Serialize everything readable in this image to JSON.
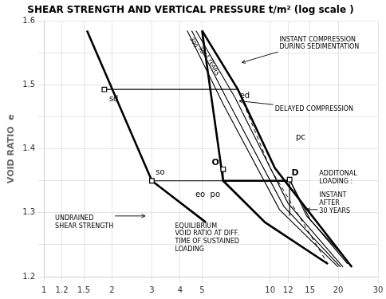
{
  "chart_data": {
    "type": "line",
    "title": "SHEAR STRENGTH AND VERTICAL PRESSURE t/m² (log scale )",
    "ylabel": "VOID RATIO  e",
    "log": "x",
    "grid": true,
    "xlim": [
      1.0,
      30.0
    ],
    "ylim": [
      1.2,
      1.6
    ],
    "xticks": [
      1,
      1.2,
      1.5,
      2,
      3,
      4,
      5,
      10,
      12,
      15,
      20,
      30
    ],
    "yticks": [
      1.2,
      {
        "value": 1.25,
        "label": ""
      },
      1.3,
      {
        "value": 1.35,
        "label": ""
      },
      1.4,
      {
        "value": 1.45,
        "label": ""
      },
      1.5,
      {
        "value": 1.55,
        "label": ""
      },
      1.6
    ],
    "series": [
      {
        "x": [
          1.55,
          3.0,
          5.2
        ],
        "values": [
          1.585,
          1.35,
          1.285
        ],
        "color": "#000000",
        "line_style": "bold"
      },
      {
        "x": [
          5.0,
          7.2,
          10.5,
          23.0
        ],
        "values": [
          1.585,
          1.493,
          1.37,
          1.215
        ],
        "color": "#000000",
        "line_style": "bold"
      },
      {
        "x": [
          5.0,
          6.2,
          9.5,
          18.0
        ],
        "values": [
          1.585,
          1.35,
          1.285,
          1.22
        ],
        "color": "#000000",
        "line_style": "bold"
      },
      {
        "x": [
          4.7,
          7.0,
          12.0,
          21.0
        ],
        "values": [
          1.585,
          1.48,
          1.315,
          1.215
        ],
        "color": "#000000",
        "line_style": "solid"
      },
      {
        "x": [
          4.5,
          6.5,
          11.5,
          20.5
        ],
        "values": [
          1.585,
          1.475,
          1.31,
          1.215
        ],
        "color": "#000000",
        "line_style": "solid"
      },
      {
        "x": [
          4.3,
          6.2,
          11.0,
          20.0
        ],
        "values": [
          1.585,
          1.47,
          1.305,
          1.215
        ],
        "color": "#000000",
        "line_style": "solid"
      },
      {
        "x": [
          7.2,
          10.0,
          18.0
        ],
        "values": [
          1.493,
          1.37,
          1.22
        ],
        "color": "#000000",
        "line_style": "dashed"
      },
      {
        "x": [
          6.2,
          9.5,
          17.0
        ],
        "values": [
          1.35,
          1.285,
          1.225
        ],
        "color": "#000000",
        "line_style": "dashed"
      },
      {
        "x": [
          1.85,
          7.2
        ],
        "values": [
          1.493,
          1.493
        ],
        "color": "#000000",
        "line_style": "solid"
      },
      {
        "x": [
          3.0,
          6.2
        ],
        "values": [
          1.35,
          1.35
        ],
        "color": "#000000",
        "line_style": "solid"
      },
      {
        "x": [
          6.2,
          6.2
        ],
        "values": [
          1.35,
          1.368
        ],
        "color": "#000000",
        "line_style": "solid"
      },
      {
        "x": [
          6.2,
          12.2
        ],
        "values": [
          1.35,
          1.35
        ],
        "color": "#000000",
        "line_style": "bold"
      },
      {
        "x": [
          12.2,
          14.5,
          22.0
        ],
        "values": [
          1.352,
          1.295,
          1.225
        ],
        "color": "#000000",
        "line_style": "solid"
      },
      {
        "x": [
          12.2,
          15.0,
          22.0
        ],
        "values": [
          1.352,
          1.29,
          1.22
        ],
        "color": "#000000",
        "line_style": "solid"
      },
      {
        "x": [
          12.2,
          12.2
        ],
        "values": [
          1.352,
          1.295
        ],
        "color": "#000000",
        "line_style": "solid"
      },
      {
        "type": "scatter",
        "marker": "square",
        "x": [
          1.85,
          3.0,
          6.2,
          12.2
        ],
        "values": [
          1.493,
          1.35,
          1.368,
          1.352
        ],
        "color": "#000000"
      }
    ],
    "annotations": [
      {
        "text": "sd",
        "x": 1.9425,
        "y": 1.485
      },
      {
        "text": "so",
        "x": 3.12,
        "y": 1.355
      },
      {
        "text": "ed",
        "x": 7.344,
        "y": 1.49
      },
      {
        "text": "eo  po",
        "x": 6.014,
        "y": 1.336
      },
      {
        "text": "O",
        "x": 5.952,
        "y": 1.37
      },
      {
        "text": "D",
        "x": 12.444,
        "y": 1.354
      },
      {
        "text": "pc",
        "x": 13.0,
        "y": 1.41
      },
      {
        "text": "3 YEARS",
        "x": 5.3,
        "y": 1.545
      },
      {
        "text": "30",
        "x": 5.05,
        "y": 1.548
      },
      {
        "text": "300",
        "x": 4.82,
        "y": 1.551
      },
      {
        "text": "INSTANT COMPRESSION\nDURING SEDIMENTATION",
        "x": 11.0,
        "y": 1.565,
        "arrow_x": 7.5,
        "arrow_y": 1.535
      },
      {
        "text": "DELAYED COMPRESSION",
        "x": 10.5,
        "y": 1.462,
        "arrow_x": 7.3,
        "arrow_y": 1.475
      },
      {
        "text": "UNDRAINED\nSHEAR STRENGTH",
        "x": 1.12,
        "y": 1.285,
        "arrow_x": 2.8,
        "arrow_y": 1.295
      },
      {
        "text": "EQUILIBRIUM\nVOID RATIO AT DIFF.\nTIME OF SUSTAINED\nLOADING",
        "x": 3.8,
        "y": 1.285
      },
      {
        "text": "ADDITONAL\nLOADING :",
        "x": 16.5,
        "y": 1.355
      },
      {
        "text": "INSTANT\nAFTER\n30 YEARS",
        "x": 16.5,
        "y": 1.315,
        "arrow_x": 14.5,
        "arrow_y": 1.305
      }
    ]
  }
}
